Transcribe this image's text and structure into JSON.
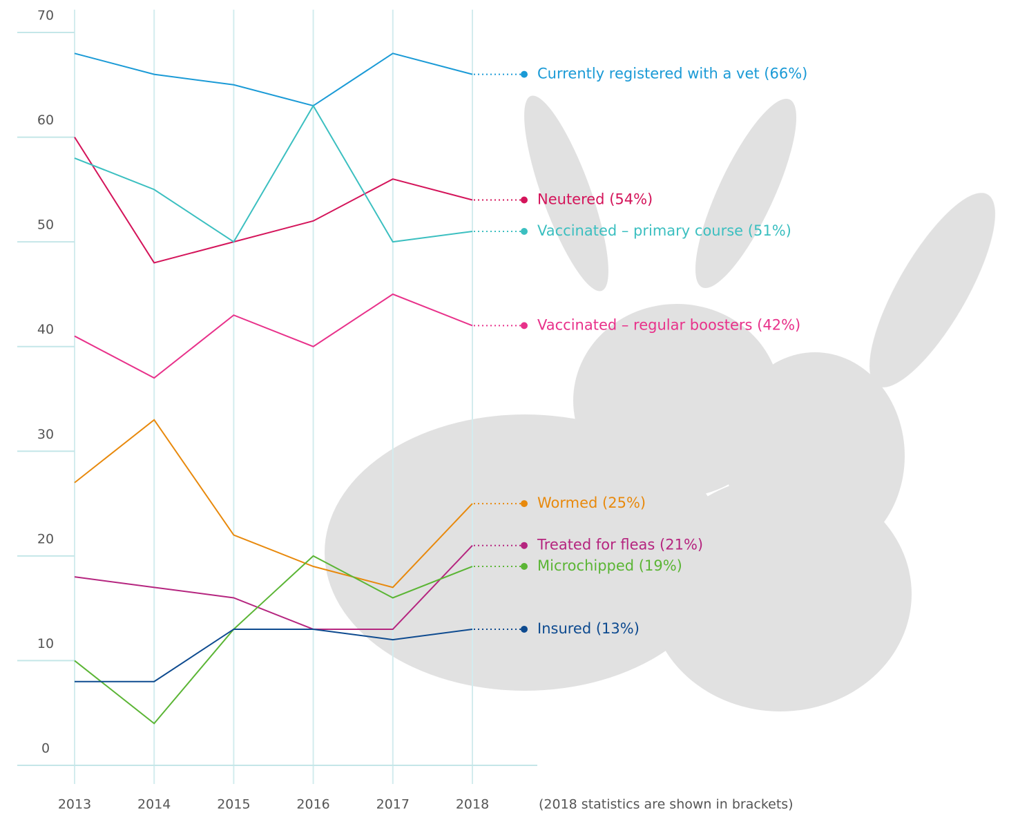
{
  "chart_data": {
    "type": "line",
    "categories": [
      "2013",
      "2014",
      "2015",
      "2016",
      "2017",
      "2018"
    ],
    "ylim": [
      0,
      70
    ],
    "yticks": [
      0,
      10,
      20,
      30,
      40,
      50,
      60,
      70
    ],
    "grid": true,
    "note": "(2018 statistics are shown in brackets)",
    "series": [
      {
        "name": "Currently registered with a vet (66%)",
        "color": "#1a9ad6",
        "values": [
          68,
          66,
          65,
          63,
          68,
          66
        ]
      },
      {
        "name": "Neutered (54%)",
        "color": "#d4145a",
        "values": [
          60,
          48,
          50,
          52,
          56,
          54
        ]
      },
      {
        "name": "Vaccinated – primary course (51%)",
        "color": "#3bbfc0",
        "values": [
          58,
          55,
          50,
          63,
          50,
          51
        ]
      },
      {
        "name": "Vaccinated – regular boosters (42%)",
        "color": "#e8318a",
        "values": [
          41,
          37,
          43,
          40,
          45,
          42
        ]
      },
      {
        "name": "Wormed (25%)",
        "color": "#e8890c",
        "values": [
          27,
          33,
          22,
          19,
          17,
          25
        ]
      },
      {
        "name": "Treated for fleas (21%)",
        "color": "#b5257f",
        "values": [
          18,
          17,
          16,
          13,
          13,
          21
        ]
      },
      {
        "name": "Microchipped (19%)",
        "color": "#5bb535",
        "values": [
          10,
          4,
          13,
          20,
          16,
          19
        ]
      },
      {
        "name": "Insured (13%)",
        "color": "#0d4a8f",
        "values": [
          8,
          8,
          13,
          13,
          12,
          13
        ]
      }
    ]
  }
}
